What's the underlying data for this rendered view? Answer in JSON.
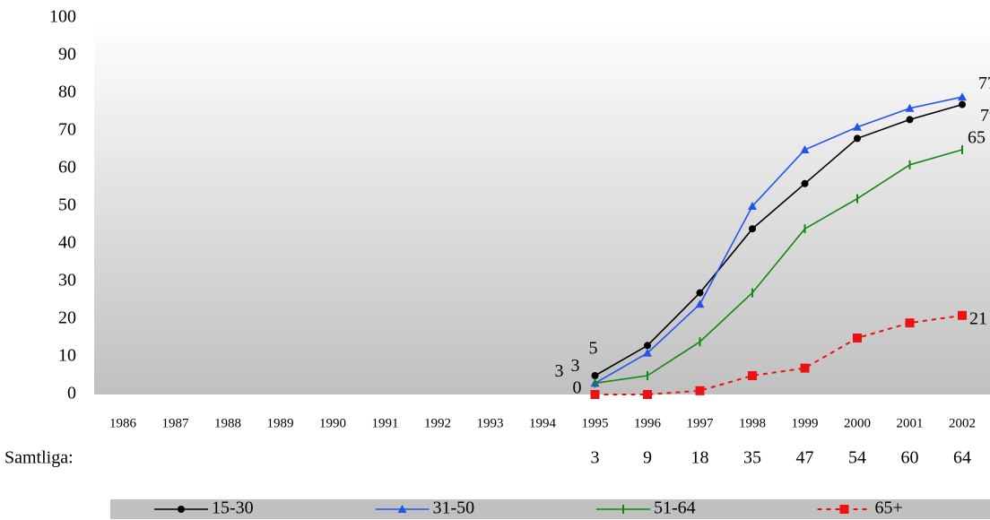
{
  "chart_data": {
    "type": "line",
    "categories": [
      "1986",
      "1987",
      "1988",
      "1989",
      "1990",
      "1991",
      "1992",
      "1993",
      "1994",
      "1995",
      "1996",
      "1997",
      "1998",
      "1999",
      "2000",
      "2001",
      "2002"
    ],
    "series": [
      {
        "name": "15-30",
        "color": "#000000",
        "marker": "circle",
        "dash": false,
        "values": [
          null,
          null,
          null,
          null,
          null,
          null,
          null,
          null,
          null,
          5,
          13,
          27,
          44,
          56,
          68,
          73,
          77
        ]
      },
      {
        "name": "31-50",
        "color": "#2255ee",
        "marker": "triangle",
        "dash": false,
        "values": [
          null,
          null,
          null,
          null,
          null,
          null,
          null,
          null,
          null,
          3,
          11,
          24,
          50,
          65,
          71,
          76,
          79
        ]
      },
      {
        "name": "51-64",
        "color": "#118811",
        "marker": "dash",
        "dash": false,
        "values": [
          null,
          null,
          null,
          null,
          null,
          null,
          null,
          null,
          null,
          3,
          5,
          14,
          27,
          44,
          52,
          61,
          65
        ]
      },
      {
        "name": "65+",
        "color": "#ee1111",
        "marker": "square",
        "dash": true,
        "values": [
          null,
          null,
          null,
          null,
          null,
          null,
          null,
          null,
          null,
          0,
          0,
          1,
          5,
          7,
          15,
          19,
          21
        ]
      }
    ],
    "ylim": [
      0,
      100
    ],
    "yticks": [
      0,
      10,
      20,
      30,
      40,
      50,
      60,
      70,
      80,
      90,
      100
    ],
    "grid": false,
    "totals": {
      "label": "Samtliga:",
      "values": [
        null,
        null,
        null,
        null,
        null,
        null,
        null,
        null,
        null,
        3,
        9,
        18,
        35,
        47,
        54,
        60,
        64
      ]
    },
    "legend": "bottom"
  }
}
